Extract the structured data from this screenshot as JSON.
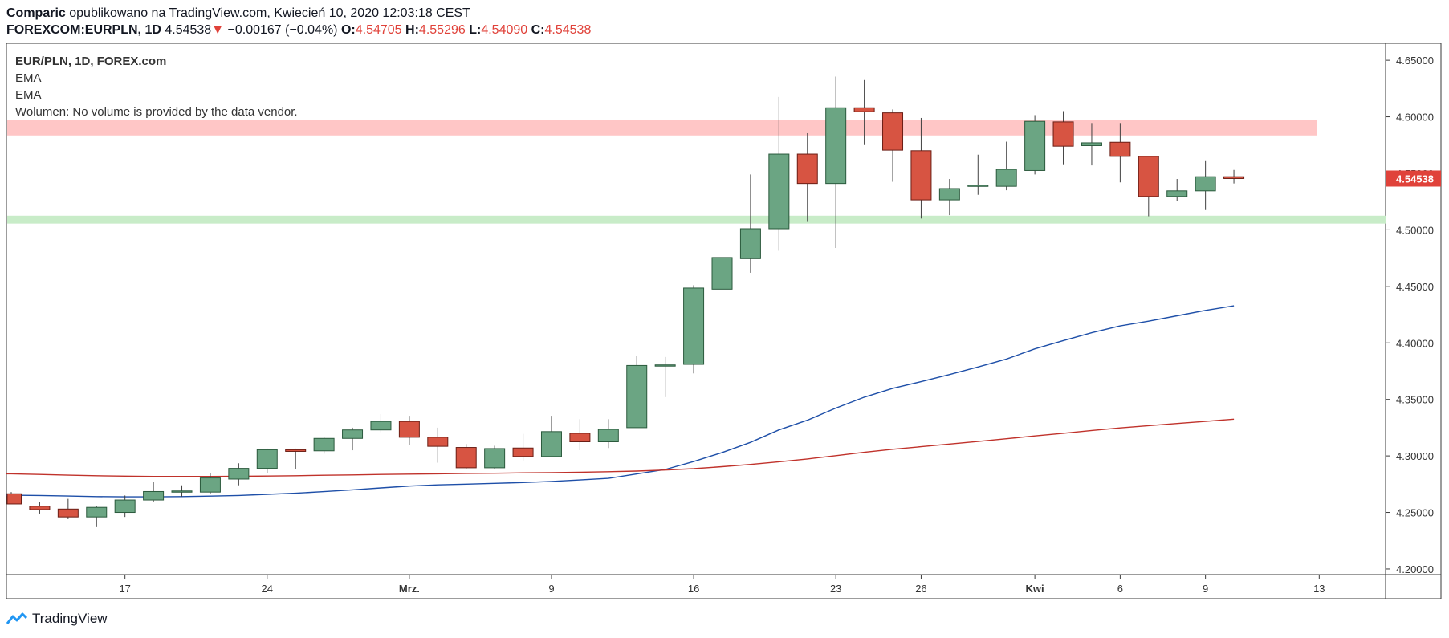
{
  "header": {
    "author": "Comparic",
    "published_text": "opublikowano na TradingView.com, Kwiecień 10, 2020 12:03:18 CEST",
    "symbol": "FOREXCOM:EURPLN, 1D",
    "price": "4.54538",
    "change": "−0.00167 (−0.04%)",
    "o_label": "O:",
    "o_value": "4.54705",
    "h_label": "H:",
    "h_value": "4.55296",
    "l_label": "L:",
    "l_value": "4.54090",
    "c_label": "C:",
    "c_value": "4.54538"
  },
  "legend": {
    "title": "EUR/PLN, 1D, FOREX.com",
    "ema1": "EMA",
    "ema2": "EMA",
    "volume": "Wolumen: No volume is provided by the data vendor."
  },
  "footer": {
    "brand": "TradingView"
  },
  "colors": {
    "up": "#6ba583",
    "down": "#d75442",
    "ema_fast": "#1e4fa8",
    "ema_slow": "#c0322b",
    "resistance_zone": "#ffc6c6",
    "support_zone": "#c8ecc8"
  },
  "chart_data": {
    "type": "candlestick",
    "title": "EUR/PLN, 1D, FOREX.com",
    "ylim": [
      4.195,
      4.665
    ],
    "y_ticks": [
      "4.65000",
      "4.60000",
      "4.55000",
      "4.50000",
      "4.45000",
      "4.40000",
      "4.35000",
      "4.30000",
      "4.25000",
      "4.20000"
    ],
    "x_ticks": [
      {
        "label": "17",
        "index": 4
      },
      {
        "label": "24",
        "index": 9
      },
      {
        "label": "Mrz.",
        "index": 14
      },
      {
        "label": "9",
        "index": 19
      },
      {
        "label": "16",
        "index": 24
      },
      {
        "label": "23",
        "index": 29
      },
      {
        "label": "26",
        "index": 32
      },
      {
        "label": "Kwi",
        "index": 36
      },
      {
        "label": "6",
        "index": 39
      },
      {
        "label": "9",
        "index": 42
      },
      {
        "label": "13",
        "index": 46
      }
    ],
    "last_price_label": "4.54538",
    "zones": [
      {
        "name": "resistance",
        "from": 4.5835,
        "to": 4.5975,
        "color": "#ffc6c6"
      },
      {
        "name": "support",
        "from": 4.5055,
        "to": 4.5125,
        "color": "#c8ecc8"
      }
    ],
    "candles": [
      {
        "o": 4.2665,
        "h": 4.268,
        "l": 4.258,
        "c": 4.2575
      },
      {
        "o": 4.2555,
        "h": 4.259,
        "l": 4.249,
        "c": 4.2525
      },
      {
        "o": 4.253,
        "h": 4.262,
        "l": 4.244,
        "c": 4.246
      },
      {
        "o": 4.246,
        "h": 4.256,
        "l": 4.237,
        "c": 4.2545
      },
      {
        "o": 4.25,
        "h": 4.265,
        "l": 4.246,
        "c": 4.261
      },
      {
        "o": 4.261,
        "h": 4.277,
        "l": 4.259,
        "c": 4.2685
      },
      {
        "o": 4.268,
        "h": 4.274,
        "l": 4.264,
        "c": 4.269
      },
      {
        "o": 4.268,
        "h": 4.285,
        "l": 4.266,
        "c": 4.2805
      },
      {
        "o": 4.2795,
        "h": 4.2935,
        "l": 4.274,
        "c": 4.289
      },
      {
        "o": 4.289,
        "h": 4.3065,
        "l": 4.2845,
        "c": 4.3055
      },
      {
        "o": 4.3055,
        "h": 4.3065,
        "l": 4.288,
        "c": 4.304
      },
      {
        "o": 4.3045,
        "h": 4.3165,
        "l": 4.302,
        "c": 4.3155
      },
      {
        "o": 4.3155,
        "h": 4.325,
        "l": 4.305,
        "c": 4.323
      },
      {
        "o": 4.323,
        "h": 4.337,
        "l": 4.321,
        "c": 4.3305
      },
      {
        "o": 4.3305,
        "h": 4.3355,
        "l": 4.31,
        "c": 4.3165
      },
      {
        "o": 4.3165,
        "h": 4.325,
        "l": 4.294,
        "c": 4.3085
      },
      {
        "o": 4.3075,
        "h": 4.3105,
        "l": 4.288,
        "c": 4.2895
      },
      {
        "o": 4.2895,
        "h": 4.309,
        "l": 4.288,
        "c": 4.3065
      },
      {
        "o": 4.307,
        "h": 4.3195,
        "l": 4.296,
        "c": 4.2995
      },
      {
        "o": 4.2995,
        "h": 4.3355,
        "l": 4.299,
        "c": 4.3215
      },
      {
        "o": 4.32,
        "h": 4.3325,
        "l": 4.305,
        "c": 4.3125
      },
      {
        "o": 4.3125,
        "h": 4.3325,
        "l": 4.307,
        "c": 4.3235
      },
      {
        "o": 4.325,
        "h": 4.3885,
        "l": 4.325,
        "c": 4.38
      },
      {
        "o": 4.38,
        "h": 4.3875,
        "l": 4.352,
        "c": 4.3805
      },
      {
        "o": 4.381,
        "h": 4.451,
        "l": 4.373,
        "c": 4.4485
      },
      {
        "o": 4.4475,
        "h": 4.475,
        "l": 4.432,
        "c": 4.4755
      },
      {
        "o": 4.4745,
        "h": 4.549,
        "l": 4.462,
        "c": 4.501
      },
      {
        "o": 4.501,
        "h": 4.6175,
        "l": 4.4815,
        "c": 4.567
      },
      {
        "o": 4.567,
        "h": 4.5855,
        "l": 4.507,
        "c": 4.541
      },
      {
        "o": 4.541,
        "h": 4.6355,
        "l": 4.484,
        "c": 4.608
      },
      {
        "o": 4.608,
        "h": 4.6325,
        "l": 4.575,
        "c": 4.6045
      },
      {
        "o": 4.6035,
        "h": 4.6065,
        "l": 4.5425,
        "c": 4.5705
      },
      {
        "o": 4.57,
        "h": 4.599,
        "l": 4.51,
        "c": 4.5265
      },
      {
        "o": 4.5265,
        "h": 4.545,
        "l": 4.513,
        "c": 4.5365
      },
      {
        "o": 4.5395,
        "h": 4.5665,
        "l": 4.531,
        "c": 4.5395
      },
      {
        "o": 4.5385,
        "h": 4.578,
        "l": 4.535,
        "c": 4.5535
      },
      {
        "o": 4.5525,
        "h": 4.6015,
        "l": 4.549,
        "c": 4.596
      },
      {
        "o": 4.5955,
        "h": 4.605,
        "l": 4.558,
        "c": 4.574
      },
      {
        "o": 4.5745,
        "h": 4.5945,
        "l": 4.557,
        "c": 4.577
      },
      {
        "o": 4.5775,
        "h": 4.5945,
        "l": 4.542,
        "c": 4.565
      },
      {
        "o": 4.565,
        "h": 4.565,
        "l": 4.512,
        "c": 4.5295
      },
      {
        "o": 4.5295,
        "h": 4.545,
        "l": 4.5255,
        "c": 4.5345
      },
      {
        "o": 4.5345,
        "h": 4.5615,
        "l": 4.5175,
        "c": 4.547
      },
      {
        "o": 4.547,
        "h": 4.553,
        "l": 4.541,
        "c": 4.5454
      }
    ],
    "series": [
      {
        "kind": "ema_fast",
        "color": "#1e4fa8",
        "values": [
          4.2652,
          4.265,
          4.2645,
          4.264,
          4.2638,
          4.2638,
          4.264,
          4.2644,
          4.265,
          4.266,
          4.267,
          4.2684,
          4.27,
          4.2717,
          4.2733,
          4.2744,
          4.275,
          4.2757,
          4.2764,
          4.2774,
          4.2787,
          4.2801,
          4.284,
          4.288,
          4.295,
          4.303,
          4.312,
          4.323,
          4.3316,
          4.3423,
          4.352,
          4.3598,
          4.3657,
          4.372,
          4.3787,
          4.3857,
          4.3947,
          4.402,
          4.409,
          4.415,
          4.4192,
          4.424,
          4.4287,
          4.4328
        ]
      },
      {
        "kind": "ema_slow",
        "color": "#c0322b",
        "values": [
          4.2842,
          4.2836,
          4.283,
          4.2825,
          4.2821,
          4.2818,
          4.2818,
          4.2818,
          4.282,
          4.2822,
          4.2825,
          4.2829,
          4.2832,
          4.2836,
          4.2839,
          4.2842,
          4.2845,
          4.2847,
          4.285,
          4.2852,
          4.2856,
          4.286,
          4.2866,
          4.2875,
          4.2887,
          4.2905,
          4.2925,
          4.2948,
          4.2973,
          4.3002,
          4.3032,
          4.3059,
          4.3082,
          4.3105,
          4.3128,
          4.3152,
          4.3177,
          4.32,
          4.3225,
          4.3248,
          4.3268,
          4.3287,
          4.3305,
          4.3325
        ]
      }
    ]
  }
}
